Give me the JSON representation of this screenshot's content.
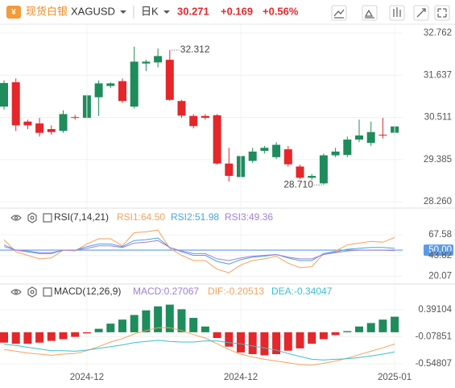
{
  "header": {
    "name": "现货白银",
    "symbol": "XAGUSD",
    "period": "日K",
    "price": "30.271",
    "change": "+0.169",
    "change_pct": "+0.56%"
  },
  "chart_data": [
    {
      "type": "candlestick",
      "categories": [
        null,
        null,
        null,
        null,
        null,
        null,
        null,
        "2024-12",
        null,
        null,
        null,
        null,
        null,
        null,
        null,
        null,
        null,
        null,
        null,
        null,
        "2024-12",
        null,
        null,
        null,
        null,
        null,
        null,
        null,
        null,
        null,
        null,
        null,
        null,
        "2025-01"
      ],
      "open": [
        30.8,
        31.45,
        30.4,
        30.35,
        30.2,
        30.15,
        30.52,
        30.5,
        31.05,
        31.35,
        31.48,
        30.8,
        31.95,
        31.98,
        32.05,
        30.95,
        30.55,
        30.55,
        30.57,
        29.28,
        28.92,
        29.35,
        29.62,
        29.45,
        29.66,
        29.2,
        28.9,
        28.75,
        29.5,
        29.51,
        29.92,
        29.83,
        30.05,
        30.102
      ],
      "high": [
        31.5,
        31.55,
        30.45,
        30.5,
        30.3,
        30.7,
        30.58,
        31.15,
        31.5,
        31.45,
        31.55,
        32.4,
        32.05,
        32.35,
        32.312,
        30.98,
        30.6,
        30.6,
        30.6,
        29.7,
        29.55,
        29.7,
        29.75,
        29.85,
        29.75,
        29.25,
        29.0,
        29.55,
        29.7,
        30.0,
        30.45,
        30.4,
        30.5,
        30.3
      ],
      "low": [
        30.72,
        30.15,
        30.2,
        30.0,
        30.05,
        30.1,
        30.45,
        30.45,
        30.55,
        31.3,
        30.9,
        30.75,
        31.75,
        31.85,
        30.95,
        30.5,
        30.22,
        30.45,
        29.25,
        28.8,
        28.85,
        29.3,
        29.55,
        29.4,
        29.2,
        28.86,
        28.85,
        28.71,
        29.45,
        29.45,
        29.85,
        29.75,
        29.95,
        30.0
      ],
      "close": [
        31.43,
        30.3,
        30.3,
        30.1,
        30.12,
        30.6,
        30.5,
        31.1,
        31.42,
        31.42,
        30.95,
        32.0,
        32.0,
        32.15,
        30.98,
        30.56,
        30.28,
        30.5,
        29.28,
        28.95,
        29.48,
        29.6,
        29.7,
        29.78,
        29.26,
        28.9,
        28.95,
        29.5,
        29.6,
        29.92,
        30.03,
        30.12,
        30.03,
        30.271
      ],
      "up_color": "#1e8c5c",
      "down_color": "#e5262a",
      "ylim": [
        28.09,
        33.0
      ],
      "yticks": [
        32.762,
        31.637,
        30.511,
        29.385,
        {
          "value": 28.26,
          "label": "28.260"
        }
      ],
      "annotations": [
        {
          "index": 14,
          "label": "32.312"
        },
        {
          "index": 27,
          "label": "28.710"
        }
      ],
      "grid": true
    },
    {
      "type": "line",
      "title": "RSI(7,14,21)",
      "series": [
        {
          "name": "RSI1:64.50",
          "color": "#f5a25d",
          "values": [
            62,
            48,
            44,
            40,
            41,
            50,
            49,
            57,
            63,
            63,
            55,
            70,
            71,
            73,
            52,
            44,
            38,
            38,
            28,
            24,
            33,
            38,
            40,
            43,
            35,
            30,
            31,
            46,
            49,
            56,
            58,
            60,
            59,
            64.5
          ]
        },
        {
          "name": "RSI2:51.98",
          "color": "#4aa3df",
          "values": [
            56,
            50,
            48,
            46,
            46,
            50,
            50,
            54,
            57,
            57,
            54,
            61,
            62,
            64,
            53,
            48,
            44,
            44,
            37,
            34,
            39,
            42,
            43,
            45,
            41,
            38,
            38,
            46,
            48,
            51,
            52,
            53,
            53,
            51.98
          ]
        },
        {
          "name": "RSI3:49.36",
          "color": "#a47fd6",
          "values": [
            54,
            50,
            49,
            47,
            47,
            50,
            50,
            52,
            55,
            55,
            53,
            58,
            59,
            61,
            53,
            49,
            46,
            46,
            40,
            38,
            41,
            43,
            44,
            45,
            42,
            40,
            40,
            45,
            47,
            49,
            50,
            50,
            50,
            49.36
          ]
        }
      ],
      "ylim": [
        13,
        76
      ],
      "yticks": [
        67.58,
        {
          "value": 50,
          "label": "50.00",
          "highlight": true
        },
        43.82,
        20.07
      ],
      "grid": true
    },
    {
      "type": "macd",
      "title": "MACD(12,26,9)",
      "series": [
        {
          "name": "MACD:0.27067",
          "color": "#9b7fd6",
          "up_color": "#1e8c5c",
          "down_color": "#e5262a",
          "values": [
            -0.18,
            -0.2,
            -0.2,
            -0.18,
            -0.15,
            -0.12,
            -0.08,
            -0.02,
            0.06,
            0.15,
            0.22,
            0.3,
            0.38,
            0.45,
            0.48,
            0.4,
            0.25,
            0.1,
            -0.1,
            -0.25,
            -0.35,
            -0.38,
            -0.4,
            -0.38,
            -0.32,
            -0.28,
            -0.2,
            -0.12,
            -0.05,
            0.02,
            0.1,
            0.16,
            0.22,
            0.27067
          ]
        },
        {
          "name": "DIF:-0.20513",
          "color": "#f5a25d",
          "values": [
            -0.3,
            -0.33,
            -0.36,
            -0.38,
            -0.4,
            -0.38,
            -0.37,
            -0.32,
            -0.25,
            -0.17,
            -0.11,
            -0.03,
            0.03,
            0.08,
            0.08,
            0.03,
            -0.04,
            -0.1,
            -0.2,
            -0.3,
            -0.38,
            -0.43,
            -0.47,
            -0.5,
            -0.53,
            -0.56,
            -0.57,
            -0.54,
            -0.5,
            -0.45,
            -0.39,
            -0.33,
            -0.27,
            -0.20513
          ]
        },
        {
          "name": "DEA:-0.34047",
          "color": "#3bbfcf",
          "values": [
            -0.21,
            -0.23,
            -0.26,
            -0.29,
            -0.32,
            -0.32,
            -0.33,
            -0.31,
            -0.28,
            -0.25,
            -0.22,
            -0.18,
            -0.16,
            -0.14,
            -0.16,
            -0.17,
            -0.17,
            -0.15,
            -0.15,
            -0.18,
            -0.2,
            -0.24,
            -0.27,
            -0.31,
            -0.37,
            -0.42,
            -0.47,
            -0.48,
            -0.47,
            -0.46,
            -0.44,
            -0.41,
            -0.38,
            -0.34047
          ]
        }
      ],
      "ylim": [
        -0.646,
        0.531
      ],
      "yticks": [
        0.39104,
        -0.07851,
        -0.54807
      ],
      "grid": true
    }
  ]
}
